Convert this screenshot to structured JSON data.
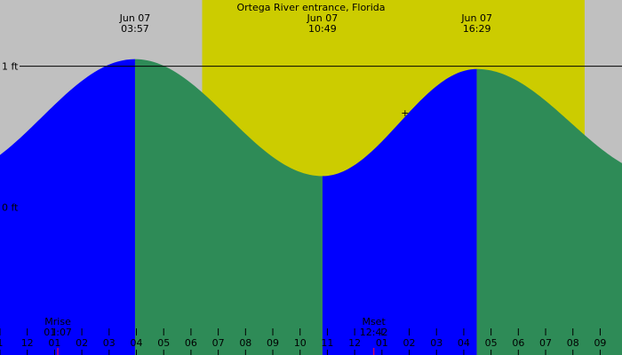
{
  "chart_data": {
    "type": "area",
    "title": "Ortega River entrance, Florida",
    "y_labels": [
      {
        "text": "1 ft",
        "value": 1.0
      },
      {
        "text": "0 ft",
        "value": 0.0
      }
    ],
    "ylim": [
      -1.05,
      1.47
    ],
    "x_range_hours": [
      -1.0,
      21.8
    ],
    "daylight": {
      "start_hour": 6.41,
      "end_hour": 20.43
    },
    "extremes": [
      {
        "type": "high",
        "date": "Jun 07",
        "time": "03:57",
        "hour": 3.95,
        "height": 1.05
      },
      {
        "type": "low",
        "hour": 10.82,
        "height": 0.22
      },
      {
        "type": "high",
        "date": "Jun 07",
        "time": "16:29",
        "hour": 16.48,
        "height": 0.98
      }
    ],
    "header_labels": [
      {
        "date": "Jun 07",
        "time": "03:57",
        "hour": 3.95
      },
      {
        "date": "Jun 07",
        "time": "10:49",
        "hour": 10.82
      },
      {
        "date": "Jun 07",
        "time": "16:29",
        "hour": 16.48
      }
    ],
    "start_height": 0.35,
    "end_height": 0.35,
    "current_marker": {
      "symbol": "+",
      "hour": 13.85,
      "height": 0.67
    },
    "x_tick_labels": [
      "1",
      "12",
      "01",
      "02",
      "03",
      "04",
      "05",
      "06",
      "07",
      "08",
      "09",
      "10",
      "11",
      "12",
      "01",
      "02",
      "03",
      "04",
      "05",
      "06",
      "07",
      "08",
      "09"
    ],
    "x_tick_hours": [
      -1,
      0,
      1,
      2,
      3,
      4,
      5,
      6,
      7,
      8,
      9,
      10,
      11,
      12,
      13,
      14,
      15,
      16,
      17,
      18,
      19,
      20,
      21
    ],
    "moon_events": [
      {
        "label": "Mrise",
        "time": "01:07",
        "hour": 1.12
      },
      {
        "label": "Mset",
        "time": "12:42",
        "hour": 12.7
      }
    ],
    "colors": {
      "night": "#c0c0c0",
      "day": "#cccc00",
      "rising": "#0000ff",
      "falling": "#2e8b57",
      "moon_marker": "#cc0066"
    }
  }
}
